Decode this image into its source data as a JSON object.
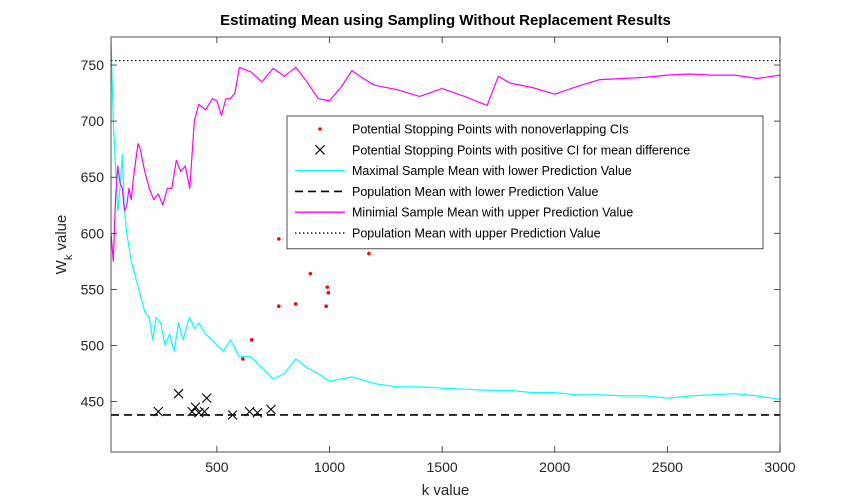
{
  "chart_data": {
    "type": "line",
    "title": "Estimating Mean using Sampling Without Replacement Results",
    "xlabel": "k value",
    "ylabel_main": "W",
    "ylabel_sub": "k",
    "ylabel_tail": " value",
    "xlim": [
      30,
      3000
    ],
    "ylim": [
      405,
      775
    ],
    "xticks": [
      500,
      1000,
      1500,
      2000,
      2500,
      3000
    ],
    "yticks": [
      450,
      500,
      550,
      600,
      650,
      700,
      750
    ],
    "grid": false,
    "legend_position": "inside-upper-right",
    "series": [
      {
        "name": "Potential Stopping Points with nonoverlapping CIs",
        "kind": "scatter-dot",
        "color": "#ff0000",
        "points": [
          [
            615,
            488
          ],
          [
            655,
            505
          ],
          [
            775,
            595
          ],
          [
            775,
            535
          ],
          [
            850,
            537
          ],
          [
            915,
            564
          ],
          [
            985,
            535
          ],
          [
            990,
            552
          ],
          [
            995,
            547
          ],
          [
            1175,
            582
          ]
        ]
      },
      {
        "name": "Potential Stopping Points with positive CI for mean difference",
        "kind": "scatter-x",
        "color": "#000000",
        "points": [
          [
            240,
            441
          ],
          [
            330,
            457
          ],
          [
            390,
            441
          ],
          [
            405,
            445
          ],
          [
            420,
            440
          ],
          [
            445,
            441
          ],
          [
            455,
            453
          ],
          [
            570,
            438
          ],
          [
            645,
            441
          ],
          [
            680,
            440
          ],
          [
            740,
            443
          ]
        ]
      },
      {
        "name": "Maximal Sample Mean with lower Prediction Value",
        "kind": "line",
        "color": "#00ffff",
        "points": [
          [
            30,
            773
          ],
          [
            40,
            700
          ],
          [
            50,
            660
          ],
          [
            60,
            620
          ],
          [
            70,
            640
          ],
          [
            80,
            670
          ],
          [
            90,
            620
          ],
          [
            100,
            600
          ],
          [
            120,
            575
          ],
          [
            140,
            560
          ],
          [
            160,
            545
          ],
          [
            180,
            530
          ],
          [
            200,
            525
          ],
          [
            215,
            505
          ],
          [
            230,
            525
          ],
          [
            250,
            520
          ],
          [
            270,
            500
          ],
          [
            290,
            510
          ],
          [
            310,
            495
          ],
          [
            330,
            520
          ],
          [
            350,
            505
          ],
          [
            370,
            520
          ],
          [
            380,
            525
          ],
          [
            400,
            515
          ],
          [
            420,
            520
          ],
          [
            450,
            510
          ],
          [
            480,
            505
          ],
          [
            500,
            500
          ],
          [
            530,
            495
          ],
          [
            560,
            505
          ],
          [
            600,
            490
          ],
          [
            650,
            490
          ],
          [
            700,
            480
          ],
          [
            750,
            470
          ],
          [
            800,
            475
          ],
          [
            850,
            488
          ],
          [
            900,
            480
          ],
          [
            950,
            475
          ],
          [
            1000,
            468
          ],
          [
            1100,
            472
          ],
          [
            1200,
            466
          ],
          [
            1300,
            463
          ],
          [
            1400,
            463
          ],
          [
            1500,
            462
          ],
          [
            1600,
            461
          ],
          [
            1700,
            460
          ],
          [
            1800,
            460
          ],
          [
            1900,
            458
          ],
          [
            2000,
            458
          ],
          [
            2100,
            456
          ],
          [
            2200,
            456
          ],
          [
            2300,
            455
          ],
          [
            2400,
            455
          ],
          [
            2500,
            453
          ],
          [
            2600,
            455
          ],
          [
            2700,
            456
          ],
          [
            2800,
            457
          ],
          [
            2900,
            455
          ],
          [
            3000,
            452
          ]
        ]
      },
      {
        "name": "Population Mean with lower Prediction Value",
        "kind": "dashed",
        "color": "#000000",
        "value": 438
      },
      {
        "name": "Minimial Sample Mean with upper Prediction Value",
        "kind": "line",
        "color": "#ff00ff",
        "points": [
          [
            30,
            600
          ],
          [
            40,
            575
          ],
          [
            50,
            630
          ],
          [
            60,
            660
          ],
          [
            70,
            645
          ],
          [
            80,
            640
          ],
          [
            90,
            620
          ],
          [
            100,
            625
          ],
          [
            110,
            640
          ],
          [
            120,
            630
          ],
          [
            130,
            650
          ],
          [
            150,
            680
          ],
          [
            160,
            675
          ],
          [
            170,
            665
          ],
          [
            180,
            655
          ],
          [
            200,
            640
          ],
          [
            220,
            630
          ],
          [
            240,
            635
          ],
          [
            260,
            625
          ],
          [
            280,
            640
          ],
          [
            300,
            640
          ],
          [
            320,
            665
          ],
          [
            340,
            655
          ],
          [
            360,
            660
          ],
          [
            380,
            640
          ],
          [
            400,
            700
          ],
          [
            420,
            715
          ],
          [
            450,
            710
          ],
          [
            480,
            720
          ],
          [
            500,
            718
          ],
          [
            520,
            705
          ],
          [
            540,
            720
          ],
          [
            560,
            720
          ],
          [
            580,
            725
          ],
          [
            600,
            748
          ],
          [
            650,
            744
          ],
          [
            700,
            735
          ],
          [
            750,
            747
          ],
          [
            800,
            740
          ],
          [
            850,
            748
          ],
          [
            900,
            735
          ],
          [
            950,
            720
          ],
          [
            1000,
            718
          ],
          [
            1050,
            730
          ],
          [
            1100,
            745
          ],
          [
            1150,
            738
          ],
          [
            1200,
            732
          ],
          [
            1300,
            728
          ],
          [
            1400,
            722
          ],
          [
            1500,
            729
          ],
          [
            1600,
            722
          ],
          [
            1700,
            714
          ],
          [
            1750,
            740
          ],
          [
            1800,
            734
          ],
          [
            1900,
            730
          ],
          [
            2000,
            724
          ],
          [
            2100,
            731
          ],
          [
            2200,
            737
          ],
          [
            2300,
            738
          ],
          [
            2400,
            739
          ],
          [
            2500,
            741
          ],
          [
            2600,
            742
          ],
          [
            2700,
            741
          ],
          [
            2800,
            741
          ],
          [
            2900,
            738
          ],
          [
            3000,
            741
          ]
        ]
      },
      {
        "name": "Population Mean with upper Prediction Value",
        "kind": "dotted",
        "color": "#000000",
        "value": 754
      }
    ]
  }
}
